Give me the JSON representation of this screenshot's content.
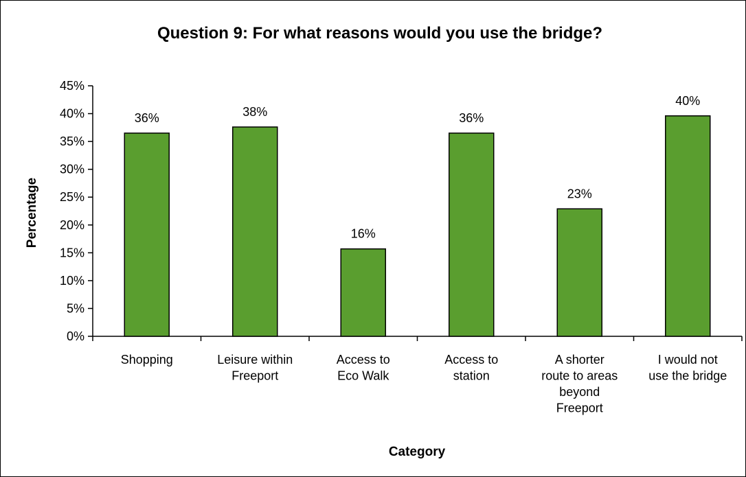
{
  "chart_data": {
    "type": "bar",
    "title": "Question 9: For what reasons would you use the bridge?",
    "xlabel": "Category",
    "ylabel": "Percentage",
    "categories": [
      [
        "Shopping"
      ],
      [
        "Leisure within",
        "Freeport"
      ],
      [
        "Access to",
        "Eco Walk"
      ],
      [
        "Access to",
        "station"
      ],
      [
        "A shorter",
        "route to areas",
        "beyond",
        "Freeport"
      ],
      [
        "I would not",
        "use the bridge"
      ]
    ],
    "values": [
      36.5,
      37.6,
      15.7,
      36.5,
      22.9,
      39.6
    ],
    "data_labels": [
      "36%",
      "38%",
      "16%",
      "36%",
      "23%",
      "40%"
    ],
    "ylim": [
      0,
      45
    ],
    "ytick_step": 5,
    "ytick_labels": [
      "0%",
      "5%",
      "10%",
      "15%",
      "20%",
      "25%",
      "30%",
      "35%",
      "40%",
      "45%"
    ],
    "grid": false,
    "legend": "none",
    "bar_color": "#5a9e2f"
  }
}
